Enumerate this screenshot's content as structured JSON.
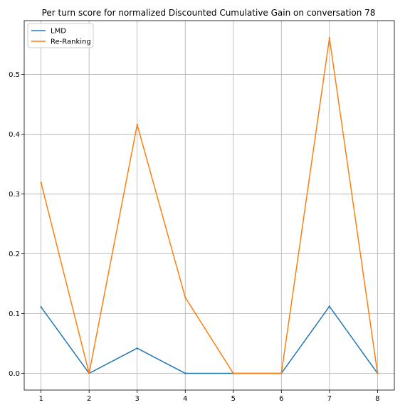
{
  "chart_data": {
    "type": "line",
    "title": "Per turn score for normalized Discounted Cumulative Gain on conversation 78",
    "xlabel": "",
    "ylabel": "",
    "x": [
      1,
      2,
      3,
      4,
      5,
      6,
      7,
      8
    ],
    "xticks": [
      1,
      2,
      3,
      4,
      5,
      6,
      7,
      8
    ],
    "yticks": [
      0.0,
      0.1,
      0.2,
      0.3,
      0.4,
      0.5
    ],
    "xlim": [
      0.65,
      8.35
    ],
    "ylim": [
      -0.028,
      0.59
    ],
    "grid": true,
    "legend_position": "top-left",
    "series": [
      {
        "name": "LMD",
        "color": "#1f77b4",
        "values": [
          0.111,
          0.0,
          0.042,
          0.0,
          0.0,
          0.0,
          0.112,
          0.0
        ]
      },
      {
        "name": "Re-Ranking",
        "color": "#ff7f0e",
        "values": [
          0.319,
          0.0,
          0.416,
          0.127,
          0.0,
          0.0,
          0.561,
          0.0
        ]
      }
    ]
  }
}
